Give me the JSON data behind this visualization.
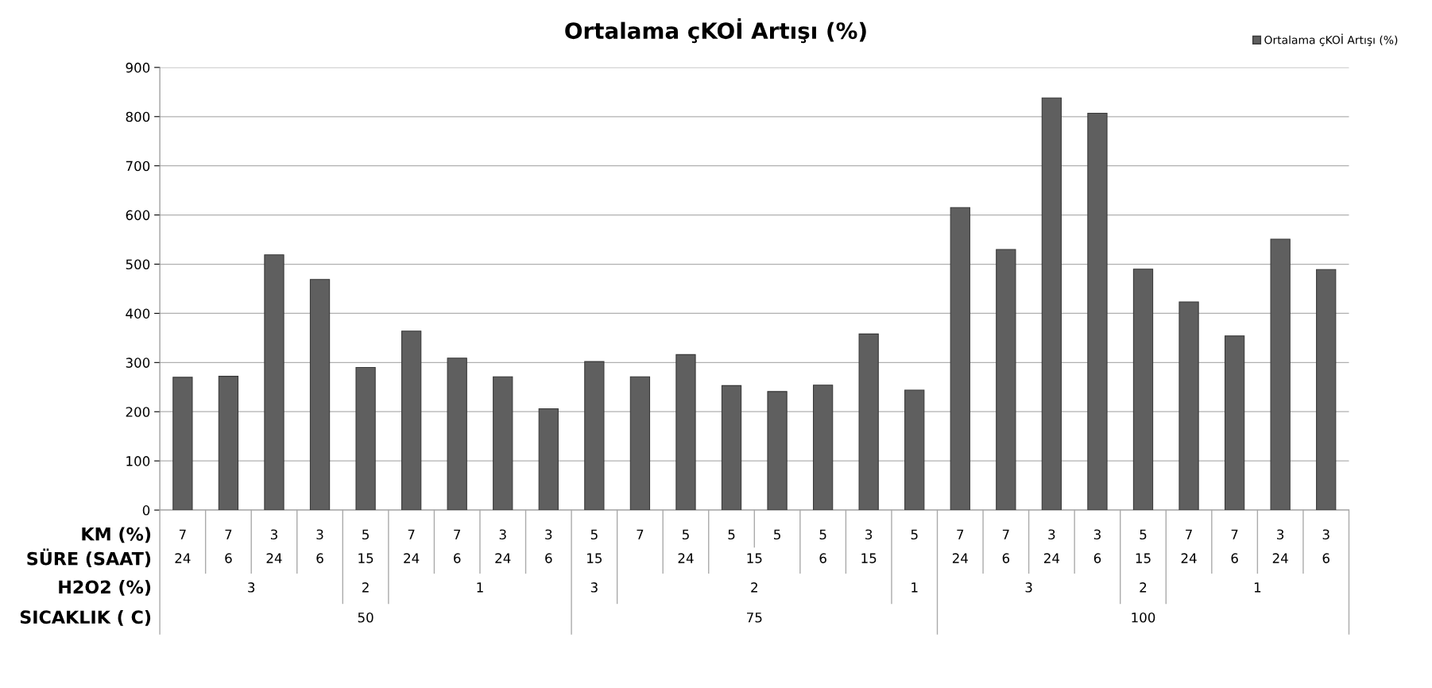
{
  "chart_data": {
    "type": "bar",
    "title": "Ortalama çKOİ Artışı (%)",
    "categories": [
      "7",
      "7",
      "3",
      "3",
      "5",
      "7",
      "7",
      "3",
      "3",
      "5",
      "7",
      "5",
      "5",
      "5",
      "5",
      "3",
      "5",
      "7",
      "7",
      "3",
      "3",
      "5",
      "7",
      "7",
      "3",
      "3"
    ],
    "series": [
      {
        "name": "Ortalama çKOİ Artışı (%)",
        "color": "#5f5f5f",
        "values": [
          270,
          272,
          519,
          469,
          290,
          364,
          309,
          271,
          206,
          302,
          271,
          316,
          253,
          241,
          254,
          358,
          244,
          615,
          530,
          838,
          807,
          490,
          423,
          354,
          551,
          489
        ]
      }
    ],
    "annotations": [
      "KM (%)",
      "SÜRE (SAAT)",
      "H2O2 (%)",
      "SICAKLIK ( C)",
      "24",
      "6",
      "24",
      "6",
      "15",
      "24",
      "6",
      "24",
      "6",
      "15",
      "24",
      "15",
      "6",
      "15",
      "24",
      "6",
      "24",
      "6",
      "15",
      "24",
      "6",
      "24",
      "6",
      "3",
      "2",
      "1",
      "3",
      "2",
      "1",
      "3",
      "2",
      "1",
      "50",
      "75",
      "100"
    ],
    "ylim": [
      0,
      900
    ],
    "yticks": [
      0,
      100,
      200,
      300,
      400,
      500,
      600,
      700,
      800,
      900
    ],
    "grid": "y",
    "legend": "top right"
  }
}
